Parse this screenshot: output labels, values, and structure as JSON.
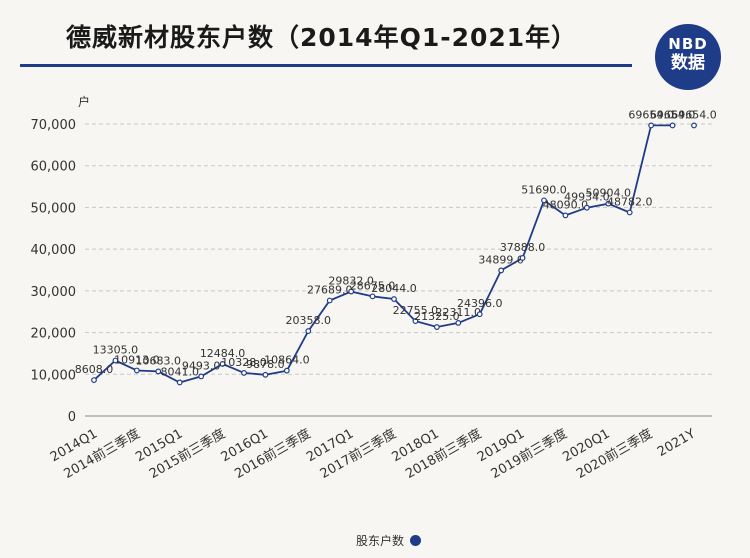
{
  "header": {
    "title": "德威新材股东户数（2014年Q1-2021年）",
    "logo_top": "NBD",
    "logo_bottom": "数据"
  },
  "colors": {
    "line": "#1f3c88",
    "accent": "#e23b3b",
    "grid": "#c8c8c8"
  },
  "chart_data": {
    "type": "line",
    "ylabel": "户",
    "ylim": [
      0,
      70000
    ],
    "yticks": [
      0,
      10000,
      20000,
      30000,
      40000,
      50000,
      60000,
      70000
    ],
    "ytick_labels": [
      "0",
      "10,000",
      "20,000",
      "30,000",
      "40,000",
      "50,000",
      "60,000",
      "70,000"
    ],
    "x_tick_labels": [
      "2014Q1",
      "2014前三季度",
      "2015Q1",
      "2015前三季度",
      "2016Q1",
      "2016前三季度",
      "2017Q1",
      "2017前三季度",
      "2018Q1",
      "2018前三季度",
      "2019Q1",
      "2019前三季度",
      "2020Q1",
      "2020前三季度",
      "2021Y"
    ],
    "grid": true,
    "legend_position": "bottom",
    "series": [
      {
        "name": "股东户数",
        "values": [
          8608,
          13305,
          10913,
          10683,
          8041,
          9493,
          12484,
          10328,
          9878,
          10864,
          20358,
          27689,
          29832,
          28675,
          28044,
          22755,
          21325,
          22311,
          24396,
          34899,
          37888,
          51690,
          48090,
          49934,
          50904,
          48782,
          69654,
          69654,
          69654
        ],
        "labels": [
          "8608.0",
          "13305.0",
          "10913.0",
          "10683.0",
          "8041.0",
          "9493.0",
          "12484.0",
          "10328.0",
          "9878.0",
          "10864.0",
          "20358.0",
          "27689.0",
          "29832.0",
          "28675.0",
          "28044.0",
          "22755.0",
          "21325.0",
          "22311.0",
          "24396.0",
          "34899.0",
          "37888.0",
          "51690.0",
          "48090.0",
          "49934.0",
          "50904.0",
          "48782.0",
          "69654.0",
          "69654.0",
          "69654.0"
        ],
        "connected_points": 28
      }
    ]
  }
}
